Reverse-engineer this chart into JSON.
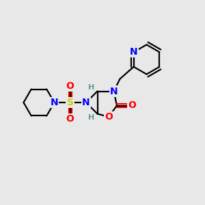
{
  "bg_color": "#e8e8e8",
  "bond_color": "#000000",
  "bond_width": 1.6,
  "atom_colors": {
    "N": "#0000ff",
    "O": "#ff0000",
    "S": "#cccc00",
    "H_stereo": "#5f9ea0",
    "C": "#000000"
  }
}
